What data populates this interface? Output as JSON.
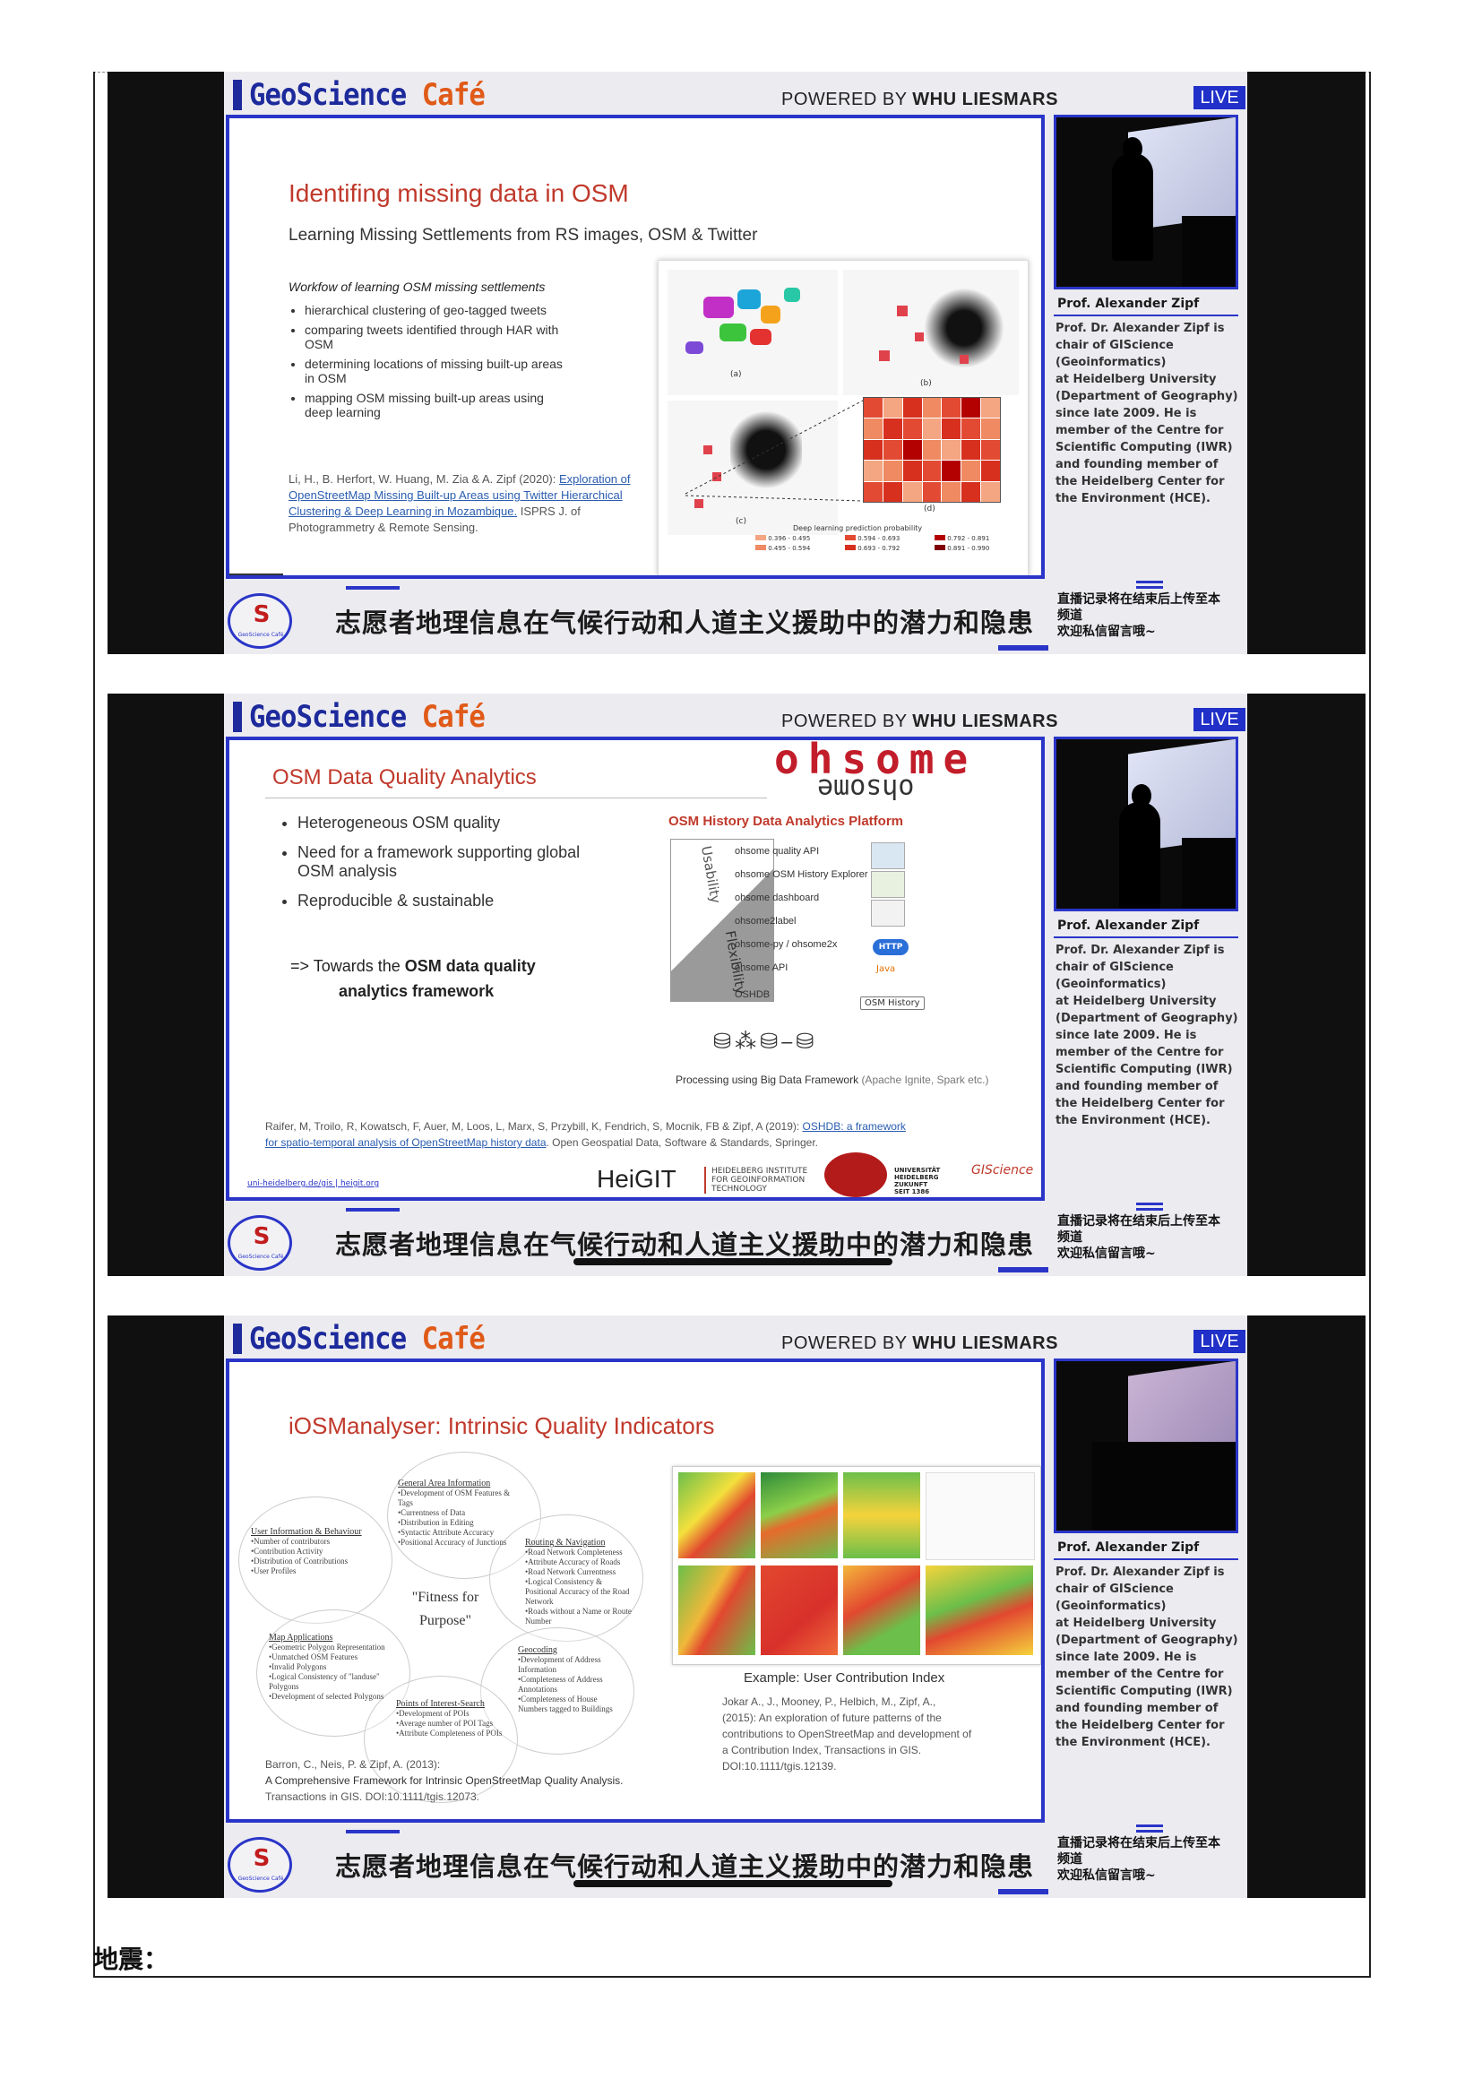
{
  "frames": [
    {
      "brand": {
        "geo": "GeoScience",
        "cafe": "Café"
      },
      "powered": "POWERED BY",
      "powered_org": "WHU LIESMARS",
      "live": "LIVE",
      "speaker": {
        "name": "Prof. Alexander Zipf",
        "bio": [
          "Prof. Dr. Alexander Zipf is",
          "chair of GIScience",
          "(Geoinformatics)",
          "at Heidelberg University",
          "(Department of Geography)",
          "since late 2009. He is",
          "member of the Centre for",
          "Scientific Computing (IWR)",
          "and founding member of",
          "the Heidelberg Center for",
          "the Environment (HCE)."
        ]
      },
      "lower_title": "志愿者地理信息在气候行动和人道主义援助中的潜力和隐患",
      "note": [
        "直播记录将在结束后上传至本",
        "频道",
        "欢迎私信留言哦~"
      ],
      "logo_text": "GeoScience Café"
    }
  ],
  "slide1": {
    "title": "Identifing missing data in OSM",
    "subtitle": "Learning Missing Settlements from RS images, OSM & Twitter",
    "workflow_heading": "Workfow of learning OSM missing settlements",
    "bullets": [
      "hierarchical clustering of geo-tagged tweets",
      "comparing tweets identified through HAR with OSM",
      "determining locations of missing built-up areas in OSM",
      "mapping OSM missing built-up areas using deep learning"
    ],
    "ref_pre": "Li, H., B. Herfort, W. Huang, M. Zia & A. Zipf (2020): ",
    "ref_link": "Exploration of OpenStreetMap Missing Built-up Areas using Twitter Hierarchical Clustering & Deep Learning in Mozambique.",
    "ref_post": " ISPRS J. of Photogrammetry & Remote Sensing.",
    "panel_labels": [
      "(a)",
      "(b)",
      "(c)",
      "(d)"
    ],
    "legend_title": "Deep learning prediction probability",
    "legend": [
      "0.396 - 0.495",
      "0.495 - 0.594",
      "0.594 - 0.693",
      "0.693 - 0.792",
      "0.792 - 0.891",
      "0.891 - 0.990"
    ],
    "legend_colors": [
      "#f4a582",
      "#ef8a62",
      "#e34a33",
      "#d7301f",
      "#b30000",
      "#7f0000"
    ]
  },
  "slide2": {
    "title": "OSM Data Quality Analytics",
    "logo_top": "ohsome",
    "logo_bottom": "ohsome",
    "bullets": [
      "Heterogeneous OSM quality",
      "Need for a framework supporting global OSM analysis",
      "Reproducible & sustainable"
    ],
    "towards_pre": "=> Towards the ",
    "towards_bold": "OSM data quality",
    "towards_line2": "analytics framework",
    "platform_title": "OSM History Data  Analytics Platform",
    "usability": "Usability",
    "flexibility": "Flexibility",
    "stack": [
      "ohsome quality API",
      "ohsome OSM History Explorer",
      "ohsome dashboard",
      "ohsome2label",
      "ohsome-py / ohsome2x",
      "ohsome API",
      "OSHDB"
    ],
    "http": "HTTP",
    "java": "Java",
    "osm_history": "OSM History",
    "processing": "Processing using Big Data Framework",
    "processing_note": "(Apache Ignite, Spark etc.)",
    "ref_pre": "Raifer, M, Troilo, R, Kowatsch, F, Auer, M, Loos, L, Marx, S, Przybill, K, Fendrich, S, Mocnik, FB & Zipf, A (2019): ",
    "ref_link": "OSHDB: a framework for spatio-temporal analysis of OpenStreetMap history data",
    "ref_post": ". Open Geospatial Data, Software & Standards, Springer.",
    "footer_links": "uni-heidelberg.de/gis  |  heigit.org",
    "heigit": "HeiGIT",
    "heigit_sub": [
      "HEIDELBERG INSTITUTE",
      "FOR GEOINFORMATION",
      "TECHNOLOGY"
    ],
    "uni": [
      "UNIVERSITÄT",
      "HEIDELBERG",
      "ZUKUNFT",
      "SEIT 1386"
    ],
    "giscience": "GIScience"
  },
  "slide3": {
    "title": "iOSManalyser: Intrinsic Quality Indicators",
    "center": "\"Fitness for Purpose\"",
    "circles": [
      {
        "head": "General Area Information",
        "items": [
          "•Development of OSM Features & Tags",
          "•Currentness of Data",
          "•Distribution in Editing",
          "•Syntactic Attribute Accuracy",
          "•Positional Accuracy of Junctions"
        ]
      },
      {
        "head": "User Information & Behaviour",
        "items": [
          "•Number of contributors",
          "•Contribution Activity",
          "•Distribution of Contributions",
          "•User Profiles"
        ]
      },
      {
        "head": "Routing & Navigation",
        "items": [
          "•Road Network Completeness",
          "•Attribute Accuracy of Roads",
          "•Road Network Currentness",
          "•Logical Consistency & Positional Accuracy of the Road Network",
          "•Roads without a Name or Route Number"
        ]
      },
      {
        "head": "Map Applications",
        "items": [
          "•Geometric Polygon Representation",
          "•Unmatched OSM Features",
          "•Invalid Polygons",
          "•Logical Consistency of \"landuse\" Polygons",
          "•Development of selected Polygons"
        ]
      },
      {
        "head": "Geocoding",
        "items": [
          "•Development of Address Information",
          "•Completeness of Address Annotations",
          "•Completeness of House Numbers tagged to Buildings"
        ]
      },
      {
        "head": "Points of Interest-Search",
        "items": [
          "•Development of POIs",
          "•Average number of POI Tags",
          "•Attribute Completeness of POIs"
        ]
      }
    ],
    "ref1": [
      "Barron, C., Neis, P. & Zipf, A. (2013):",
      "A Comprehensive Framework for Intrinsic OpenStreetMap Quality Analysis.",
      "Transactions in GIS. DOI:10.1111/tgis.12073."
    ],
    "example": "Example: User Contribution Index",
    "ref2": [
      "Jokar A., J., Mooney, P., Helbich, M., Zipf, A.,",
      "(2015): An exploration of future patterns of the",
      "contributions to OpenStreetMap and development of",
      "a Contribution Index, Transactions in GIS.",
      "DOI:10.1111/tgis.12139."
    ]
  },
  "footer": "地震："
}
